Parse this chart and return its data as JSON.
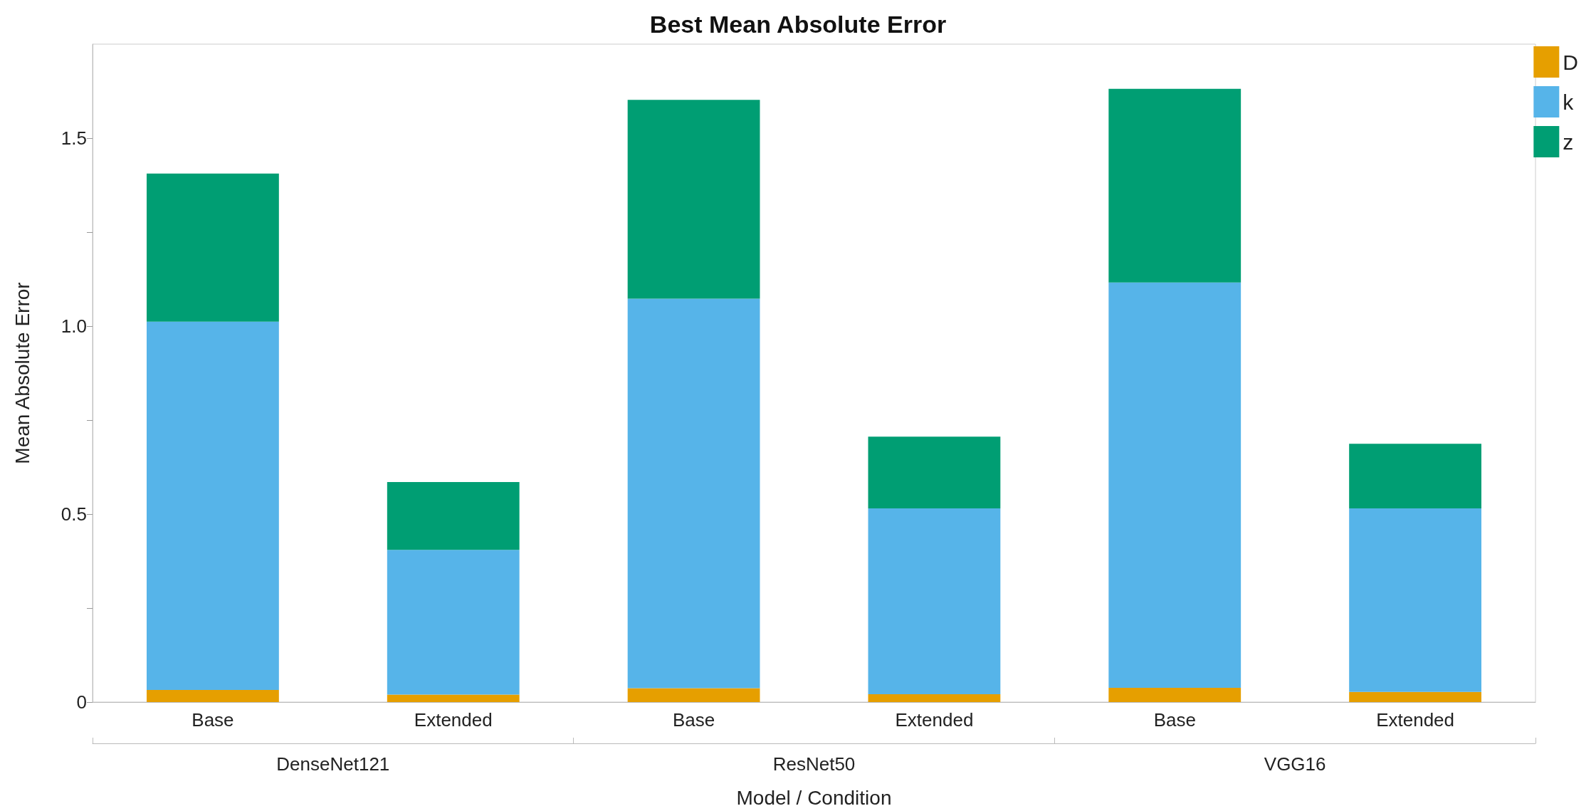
{
  "chart_data": {
    "type": "bar",
    "title": "Best Mean Absolute Error",
    "xlabel": "Model / Condition",
    "ylabel": "Mean Absolute Error",
    "categories": [
      "Base",
      "Extended",
      "Base",
      "Extended",
      "Base",
      "Extended"
    ],
    "annotations": [
      "DenseNet121",
      "ResNet50",
      "VGG16"
    ],
    "stacked": true,
    "series": [
      {
        "name": "D",
        "color": "#e69f00",
        "values": [
          0.032,
          0.02,
          0.037,
          0.021,
          0.038,
          0.027
        ]
      },
      {
        "name": "k",
        "color": "#56b4e9",
        "values": [
          0.98,
          0.385,
          1.036,
          0.494,
          1.078,
          0.488
        ]
      },
      {
        "name": "z",
        "color": "#009e73",
        "values": [
          0.394,
          0.18,
          0.529,
          0.191,
          0.515,
          0.172
        ]
      }
    ],
    "ylim": [
      0,
      1.75
    ],
    "yticks": [
      0,
      {
        "value": 0.25,
        "label": null
      },
      0.5,
      {
        "value": 0.75,
        "label": null
      },
      {
        "value": 1,
        "label": "1.0"
      },
      {
        "value": 1.25,
        "label": null
      },
      1.5
    ],
    "grid": false,
    "legend": "top right"
  }
}
